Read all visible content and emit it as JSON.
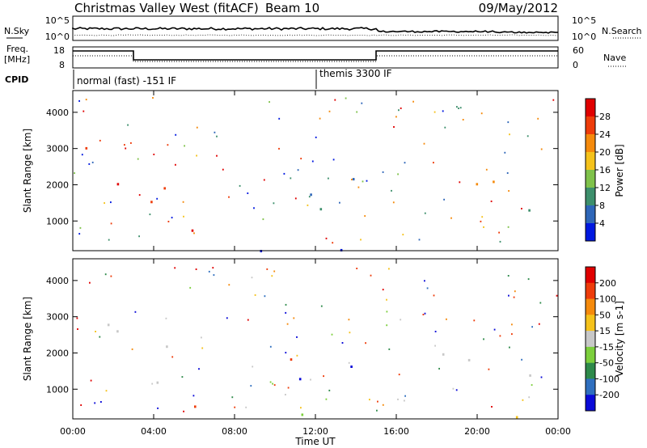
{
  "header": {
    "station": "Christmas Valley West (fitACF)",
    "beam": "Beam 10",
    "date": "09/May/2012"
  },
  "summary": {
    "nsky_label": "N.Sky",
    "nsky_ticks": [
      "10^5",
      "10^0"
    ],
    "nsearch_label": "N.Search",
    "nsearch_ticks": [
      "10^5",
      "10^0"
    ],
    "freq_label_1": "Freq.",
    "freq_label_2": "[MHz]",
    "freq_ticks": [
      "18",
      "8"
    ],
    "nave_label": "Nave",
    "nave_ticks": [
      "60",
      "0"
    ],
    "cpid_label": "CPID",
    "cpid_segments": [
      {
        "name": "normal (fast) -151 IF",
        "start_hour": 0
      },
      {
        "name": "themis 3300 IF",
        "start_hour": 12
      }
    ]
  },
  "chart_data": [
    {
      "type": "heatmap",
      "name": "Power",
      "xlabel": "Time UT",
      "ylabel": "Slant Range [km]",
      "colorbar_label": "Power [dB]",
      "xlim": [
        0,
        24
      ],
      "ylim": [
        180,
        4600
      ],
      "x_ticks": [
        "00:00",
        "04:00",
        "08:00",
        "12:00",
        "16:00",
        "20:00",
        "00:00"
      ],
      "y_ticks": [
        1000,
        2000,
        3000,
        4000
      ],
      "colorbar_ticks": [
        "4",
        "8",
        "12",
        "16",
        "20",
        "24",
        "28"
      ],
      "colorbar_range": [
        0,
        32
      ],
      "colorbar_colors": [
        "#0018e0",
        "#2e66b8",
        "#3d8f6c",
        "#7fc24a",
        "#f5c21b",
        "#f58a0c",
        "#ee3c0a",
        "#e00000"
      ]
    },
    {
      "type": "heatmap",
      "name": "Velocity",
      "xlabel": "Time UT",
      "ylabel": "Slant Range [km]",
      "colorbar_label": "Velocity [m s-1]",
      "xlim": [
        0,
        24
      ],
      "ylim": [
        180,
        4600
      ],
      "x_ticks": [
        "00:00",
        "04:00",
        "08:00",
        "12:00",
        "16:00",
        "20:00",
        "00:00"
      ],
      "y_ticks": [
        1000,
        2000,
        3000,
        4000
      ],
      "colorbar_ticks": [
        "200",
        "100",
        "50",
        "15",
        "-15",
        "-50",
        "-100",
        "-200"
      ],
      "colorbar_colors": [
        "#0a0ad8",
        "#2f6fbf",
        "#2e8a4a",
        "#7ccf3c",
        "#c8c8c8",
        "#f5c21b",
        "#f58a0c",
        "#ee3c0a",
        "#e00000"
      ]
    }
  ]
}
